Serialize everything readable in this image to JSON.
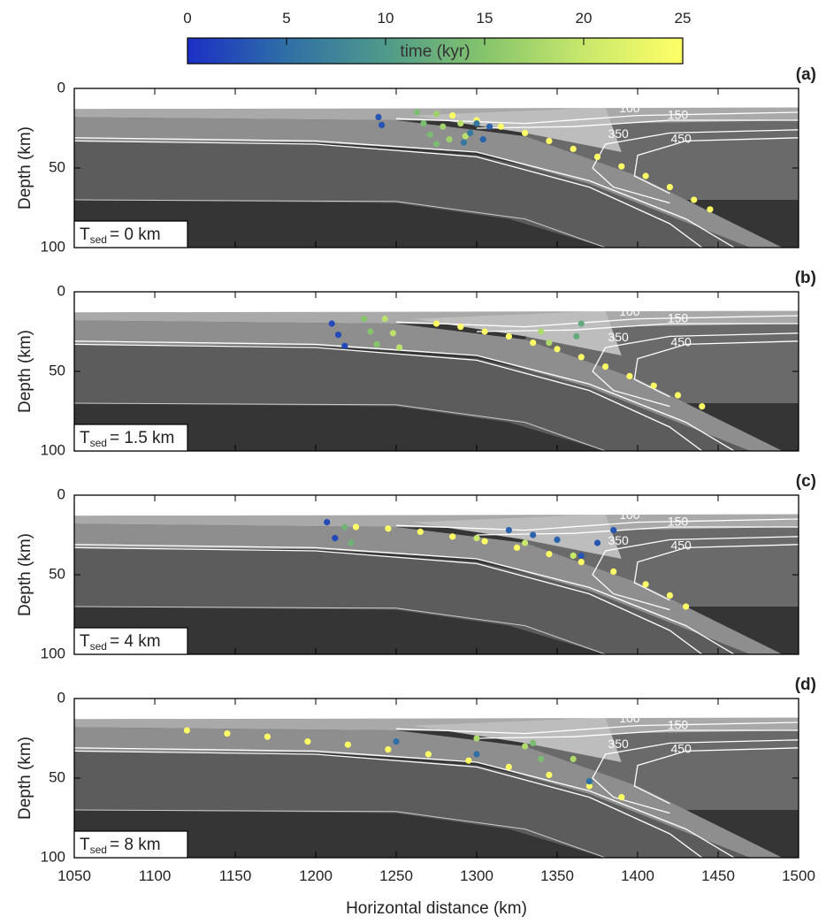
{
  "colorbar": {
    "label": "time (kyr)",
    "clim": [
      0,
      25
    ],
    "ticks": [
      0,
      5,
      10,
      15,
      20,
      25
    ],
    "colormap": [
      "#1c2fc4",
      "#2f6fa6",
      "#4f9a8a",
      "#86c46c",
      "#c8e86c",
      "#ffff66"
    ]
  },
  "chart_data": [
    {
      "type": "scatter",
      "panel_label": "(a)",
      "ylabel": "Depth (km)",
      "xlim": [
        1050,
        1500
      ],
      "ylim": [
        0,
        100
      ],
      "y_inverted": true,
      "xticks": [
        1050,
        1100,
        1150,
        1200,
        1250,
        1300,
        1350,
        1400,
        1450,
        1500
      ],
      "yticks": [
        0,
        50,
        100
      ],
      "annotation": {
        "symbol": "T",
        "subscript": "sed",
        "text": "=  0 km"
      },
      "isotherms": [
        100,
        150,
        350,
        450
      ],
      "points": {
        "x": [
          1285,
          1300,
          1315,
          1330,
          1345,
          1360,
          1375,
          1390,
          1405,
          1420,
          1435,
          1445,
          1263,
          1267,
          1271,
          1275,
          1275,
          1279,
          1283,
          1290,
          1293,
          1239,
          1241,
          1300,
          1296,
          1292,
          1308,
          1304
        ],
        "y": [
          17,
          20,
          24,
          28,
          33,
          38,
          43,
          49,
          55,
          62,
          70,
          76,
          15,
          22,
          29,
          35,
          16,
          24,
          32,
          22,
          30,
          18,
          23,
          22,
          28,
          34,
          24,
          32
        ],
        "time": [
          25,
          25,
          25,
          25,
          25,
          25,
          25,
          25,
          25,
          25,
          25,
          25,
          14,
          14,
          14,
          14,
          17,
          17,
          17,
          19,
          19,
          3,
          3,
          6,
          6,
          6,
          4,
          4
        ]
      }
    },
    {
      "type": "scatter",
      "panel_label": "(b)",
      "ylabel": "Depth (km)",
      "xlim": [
        1050,
        1500
      ],
      "ylim": [
        0,
        100
      ],
      "y_inverted": true,
      "xticks": [
        1050,
        1100,
        1150,
        1200,
        1250,
        1300,
        1350,
        1400,
        1450,
        1500
      ],
      "yticks": [
        0,
        50,
        100
      ],
      "annotation": {
        "symbol": "T",
        "subscript": "sed",
        "text": "= 1.5 km"
      },
      "isotherms": [
        100,
        150,
        350,
        450
      ],
      "points": {
        "x": [
          1275,
          1290,
          1305,
          1320,
          1335,
          1350,
          1365,
          1380,
          1395,
          1410,
          1425,
          1440,
          1210,
          1214,
          1218,
          1230,
          1234,
          1238,
          1243,
          1248,
          1252,
          1340,
          1345,
          1365,
          1362
        ],
        "y": [
          20,
          22,
          25,
          28,
          32,
          36,
          41,
          47,
          53,
          59,
          65,
          72,
          20,
          27,
          34,
          17,
          25,
          33,
          17,
          26,
          35,
          25,
          32,
          20,
          28
        ],
        "time": [
          25,
          25,
          25,
          25,
          25,
          25,
          25,
          25,
          25,
          25,
          25,
          25,
          2,
          2,
          2,
          15,
          15,
          15,
          19,
          19,
          19,
          18,
          18,
          12,
          12
        ]
      }
    },
    {
      "type": "scatter",
      "panel_label": "(c)",
      "ylabel": "Depth (km)",
      "xlim": [
        1050,
        1500
      ],
      "ylim": [
        0,
        100
      ],
      "y_inverted": true,
      "xticks": [
        1050,
        1100,
        1150,
        1200,
        1250,
        1300,
        1350,
        1400,
        1450,
        1500
      ],
      "yticks": [
        0,
        50,
        100
      ],
      "annotation": {
        "symbol": "T",
        "subscript": "sed",
        "text": "= 4 km"
      },
      "isotherms": [
        100,
        150,
        350,
        450
      ],
      "points": {
        "x": [
          1225,
          1245,
          1265,
          1285,
          1305,
          1325,
          1345,
          1365,
          1385,
          1405,
          1420,
          1430,
          1207,
          1212,
          1218,
          1222,
          1320,
          1335,
          1350,
          1300,
          1330,
          1360,
          1385,
          1375,
          1365
        ],
        "y": [
          20,
          21,
          23,
          26,
          29,
          33,
          37,
          42,
          48,
          56,
          63,
          70,
          17,
          27,
          20,
          30,
          22,
          25,
          28,
          27,
          30,
          38,
          22,
          30,
          38
        ],
        "time": [
          25,
          25,
          25,
          25,
          25,
          25,
          25,
          25,
          25,
          25,
          25,
          25,
          2,
          2,
          13,
          13,
          4,
          4,
          4,
          20,
          20,
          20,
          3,
          3,
          3
        ]
      }
    },
    {
      "type": "scatter",
      "panel_label": "(d)",
      "ylabel": "Depth (km)",
      "xlabel": "Horizontal distance (km)",
      "xlim": [
        1050,
        1500
      ],
      "ylim": [
        0,
        100
      ],
      "y_inverted": true,
      "xticks": [
        1050,
        1100,
        1150,
        1200,
        1250,
        1300,
        1350,
        1400,
        1450,
        1500
      ],
      "yticks": [
        0,
        50,
        100
      ],
      "annotation": {
        "symbol": "T",
        "subscript": "sed",
        "text": "= 8 km"
      },
      "isotherms": [
        100,
        150,
        350,
        450
      ],
      "points": {
        "x": [
          1120,
          1145,
          1170,
          1195,
          1220,
          1245,
          1270,
          1295,
          1320,
          1345,
          1370,
          1390,
          1300,
          1330,
          1360,
          1250,
          1300,
          1370,
          1335,
          1340
        ],
        "y": [
          20,
          22,
          24,
          27,
          29,
          32,
          35,
          39,
          43,
          48,
          55,
          62,
          25,
          30,
          38,
          27,
          35,
          52,
          28,
          38
        ],
        "time": [
          25,
          25,
          25,
          25,
          25,
          25,
          25,
          25,
          25,
          25,
          25,
          25,
          18,
          18,
          18,
          5,
          5,
          5,
          14,
          14
        ]
      }
    }
  ]
}
